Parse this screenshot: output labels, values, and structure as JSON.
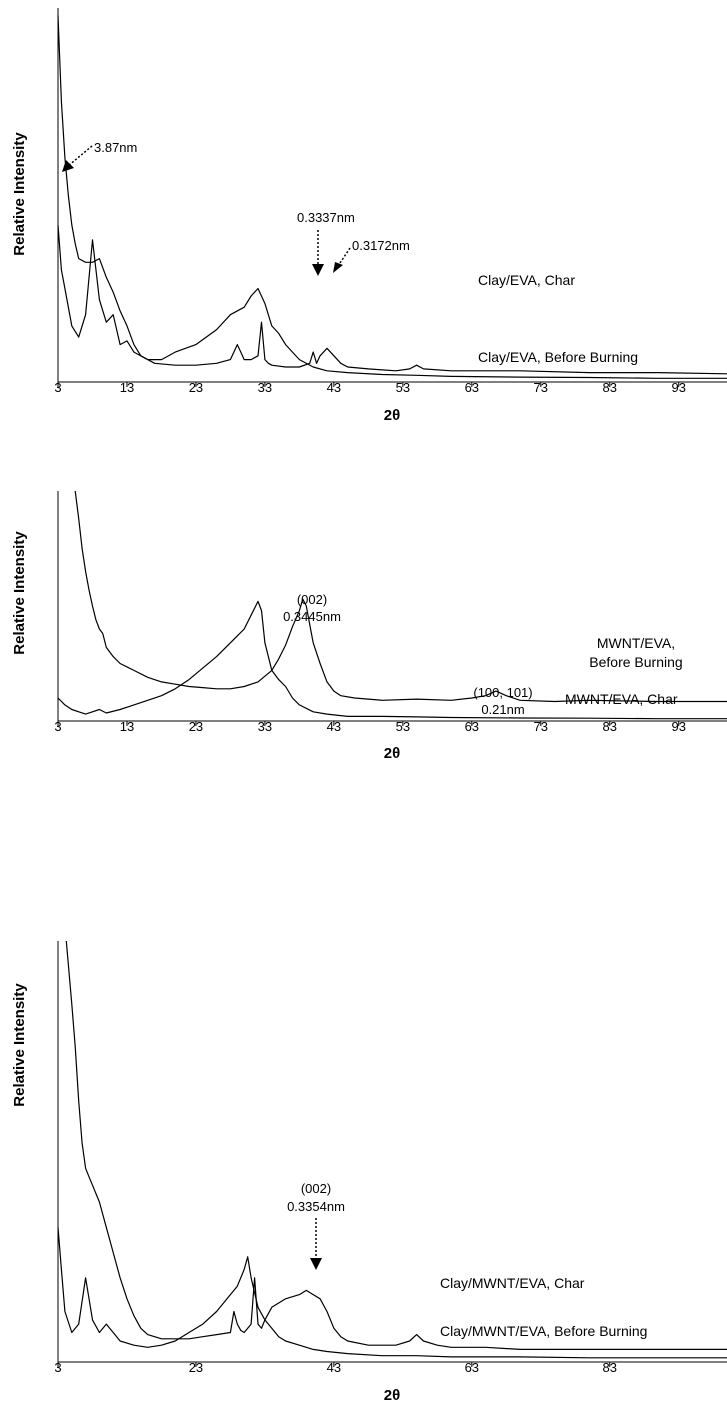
{
  "chart_data": [
    {
      "type": "line",
      "ylabel": "Relative Intensity",
      "xlabel": "2θ",
      "xlim": [
        3,
        100
      ],
      "xticks": [
        "3",
        "13",
        "23",
        "33",
        "43",
        "53",
        "63",
        "73",
        "83",
        "93"
      ],
      "grid": false,
      "series": [
        {
          "name": "Clay/EVA, Char",
          "x": [
            3,
            3.5,
            4,
            4.5,
            5,
            5.5,
            6,
            7,
            8,
            9,
            10,
            11,
            12,
            13,
            14,
            15,
            17,
            20,
            23,
            26,
            28,
            29,
            29.5,
            30,
            31,
            32,
            32.5,
            33,
            33.5,
            34,
            36,
            38,
            39.5,
            40,
            40.5,
            41,
            42,
            43,
            44,
            45,
            48,
            52,
            54,
            55,
            56,
            60,
            70,
            80,
            90,
            100
          ],
          "y": [
            0.98,
            0.75,
            0.6,
            0.5,
            0.42,
            0.37,
            0.33,
            0.32,
            0.32,
            0.33,
            0.28,
            0.24,
            0.19,
            0.15,
            0.1,
            0.07,
            0.05,
            0.045,
            0.045,
            0.05,
            0.06,
            0.1,
            0.08,
            0.06,
            0.06,
            0.07,
            0.16,
            0.06,
            0.05,
            0.045,
            0.04,
            0.04,
            0.05,
            0.08,
            0.05,
            0.07,
            0.09,
            0.07,
            0.05,
            0.04,
            0.035,
            0.03,
            0.035,
            0.045,
            0.035,
            0.03,
            0.03,
            0.025,
            0.025,
            0.022
          ]
        },
        {
          "name": "Clay/EVA, Before Burning",
          "x": [
            3,
            3.5,
            4,
            5,
            6,
            7,
            8,
            9,
            10,
            11,
            12,
            13,
            14,
            16,
            18,
            20,
            23,
            26,
            28,
            30,
            31,
            32,
            33,
            34,
            35,
            36,
            38,
            40,
            42,
            45,
            50,
            55,
            60,
            70,
            80,
            90,
            100
          ],
          "y": [
            0.42,
            0.3,
            0.25,
            0.15,
            0.12,
            0.18,
            0.38,
            0.22,
            0.16,
            0.18,
            0.1,
            0.11,
            0.08,
            0.06,
            0.06,
            0.08,
            0.1,
            0.14,
            0.18,
            0.2,
            0.23,
            0.25,
            0.21,
            0.15,
            0.13,
            0.1,
            0.06,
            0.04,
            0.03,
            0.025,
            0.02,
            0.018,
            0.015,
            0.013,
            0.012,
            0.01,
            0.01
          ]
        }
      ],
      "annotations": [
        "3.87nm",
        "0.3337nm",
        "0.3172nm"
      ]
    },
    {
      "type": "line",
      "ylabel": "Relative Intensity",
      "xlabel": "2θ",
      "xlim": [
        3,
        100
      ],
      "xticks": [
        "3",
        "13",
        "23",
        "33",
        "43",
        "53",
        "63",
        "73",
        "83",
        "93"
      ],
      "grid": false,
      "series": [
        {
          "name": "MWNT/EVA, Char",
          "x": [
            5.5,
            6,
            6.5,
            7,
            7.5,
            8,
            8.5,
            9,
            9.5,
            10,
            11,
            12,
            14,
            16,
            18,
            20,
            22,
            24,
            26,
            28,
            30,
            32,
            34,
            35,
            36,
            37,
            38,
            38.5,
            39,
            39.5,
            40,
            41,
            42,
            43,
            44,
            46,
            50,
            55,
            60,
            63,
            65,
            66.5,
            68,
            70,
            75,
            80,
            90,
            100
          ],
          "y": [
            1.05,
            0.88,
            0.75,
            0.65,
            0.57,
            0.5,
            0.44,
            0.4,
            0.38,
            0.32,
            0.28,
            0.25,
            0.22,
            0.19,
            0.17,
            0.16,
            0.15,
            0.145,
            0.14,
            0.14,
            0.15,
            0.17,
            0.22,
            0.27,
            0.33,
            0.41,
            0.48,
            0.53,
            0.5,
            0.42,
            0.34,
            0.25,
            0.17,
            0.13,
            0.11,
            0.1,
            0.09,
            0.095,
            0.09,
            0.1,
            0.11,
            0.13,
            0.11,
            0.09,
            0.085,
            0.09,
            0.085,
            0.085
          ]
        },
        {
          "name": "MWNT/EVA, Before Burning",
          "x": [
            3,
            4,
            5,
            6,
            7,
            8,
            9,
            10,
            12,
            14,
            16,
            18,
            20,
            22,
            24,
            26,
            28,
            29,
            30,
            31,
            32,
            32.5,
            33,
            34,
            35,
            36,
            37,
            38,
            40,
            42,
            45,
            50,
            55,
            60,
            70,
            80,
            90,
            100
          ],
          "y": [
            0.1,
            0.07,
            0.05,
            0.04,
            0.03,
            0.04,
            0.05,
            0.035,
            0.05,
            0.07,
            0.09,
            0.11,
            0.14,
            0.18,
            0.23,
            0.28,
            0.34,
            0.37,
            0.4,
            0.46,
            0.52,
            0.48,
            0.34,
            0.22,
            0.18,
            0.15,
            0.1,
            0.07,
            0.04,
            0.03,
            0.02,
            0.02,
            0.018,
            0.015,
            0.013,
            0.012,
            0.01,
            0.01
          ]
        }
      ],
      "annotations": [
        "(002)",
        "0.3445nm",
        "(100, 101)",
        "0.21nm"
      ]
    },
    {
      "type": "line",
      "ylabel": "Relative Intensity",
      "xlabel": "2θ",
      "xlim": [
        3,
        100
      ],
      "xticks": [
        "3",
        "23",
        "43",
        "63",
        "83"
      ],
      "grid": false,
      "series": [
        {
          "name": "Clay/MWNT/EVA, Char",
          "x": [
            4.2,
            5,
            5.5,
            6,
            6.5,
            7,
            7.5,
            8,
            9,
            10,
            11,
            12,
            13,
            14,
            15,
            16,
            17,
            18,
            20,
            22,
            24,
            26,
            28,
            28.5,
            29,
            29.5,
            30,
            31,
            31.5,
            32,
            32.5,
            33,
            34,
            36,
            38,
            39,
            40,
            41,
            42,
            43,
            44,
            45,
            48,
            52,
            54,
            55,
            56,
            58,
            60,
            65,
            70,
            75,
            80,
            90,
            100
          ],
          "y": [
            1.05,
            0.85,
            0.75,
            0.62,
            0.52,
            0.46,
            0.44,
            0.42,
            0.38,
            0.32,
            0.26,
            0.2,
            0.15,
            0.11,
            0.08,
            0.065,
            0.06,
            0.055,
            0.055,
            0.055,
            0.06,
            0.065,
            0.07,
            0.12,
            0.09,
            0.075,
            0.07,
            0.09,
            0.2,
            0.09,
            0.08,
            0.1,
            0.13,
            0.15,
            0.16,
            0.17,
            0.16,
            0.15,
            0.12,
            0.08,
            0.06,
            0.05,
            0.04,
            0.04,
            0.05,
            0.065,
            0.05,
            0.04,
            0.035,
            0.035,
            0.03,
            0.03,
            0.03,
            0.03,
            0.03
          ]
        },
        {
          "name": "Clay/MWNT/EVA, Before Burning",
          "x": [
            3,
            3.5,
            4,
            5,
            6,
            7,
            8,
            9,
            10,
            11,
            12,
            14,
            16,
            18,
            20,
            22,
            24,
            26,
            28,
            29,
            30,
            30.5,
            31,
            32,
            33,
            34,
            35,
            36,
            38,
            40,
            42,
            45,
            50,
            55,
            60,
            70,
            80,
            90,
            100
          ],
          "y": [
            0.32,
            0.22,
            0.12,
            0.07,
            0.09,
            0.2,
            0.1,
            0.07,
            0.09,
            0.07,
            0.05,
            0.04,
            0.035,
            0.04,
            0.05,
            0.07,
            0.09,
            0.12,
            0.16,
            0.18,
            0.22,
            0.25,
            0.2,
            0.13,
            0.1,
            0.08,
            0.06,
            0.05,
            0.04,
            0.03,
            0.025,
            0.02,
            0.015,
            0.015,
            0.012,
            0.012,
            0.01,
            0.01,
            0.01
          ]
        }
      ],
      "annotations": [
        "(002)",
        "0.3354nm"
      ]
    }
  ]
}
